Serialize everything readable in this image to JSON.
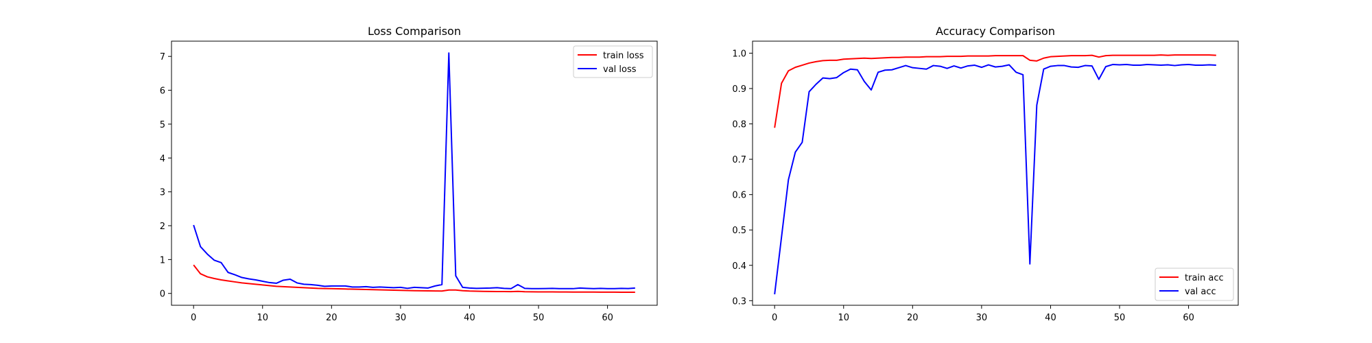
{
  "chart_data": [
    {
      "type": "line",
      "title": "Loss Comparison",
      "xlabel": "",
      "ylabel": "",
      "xlim": [
        -3.2,
        67.2
      ],
      "ylim": [
        -0.35,
        7.45
      ],
      "xticks": [
        0,
        10,
        20,
        30,
        40,
        50,
        60
      ],
      "yticks": [
        0,
        1,
        2,
        3,
        4,
        5,
        6,
        7
      ],
      "xtick_labels": [
        "0",
        "10",
        "20",
        "30",
        "40",
        "50",
        "60"
      ],
      "ytick_labels": [
        "0",
        "1",
        "2",
        "3",
        "4",
        "5",
        "6",
        "7"
      ],
      "grid": false,
      "legend_position": "top-right",
      "series": [
        {
          "name": "train loss",
          "color": "#ff0000",
          "values": [
            0.84,
            0.58,
            0.49,
            0.44,
            0.4,
            0.37,
            0.34,
            0.31,
            0.29,
            0.27,
            0.25,
            0.23,
            0.21,
            0.2,
            0.19,
            0.18,
            0.17,
            0.16,
            0.15,
            0.145,
            0.14,
            0.135,
            0.13,
            0.125,
            0.12,
            0.115,
            0.11,
            0.105,
            0.1,
            0.095,
            0.09,
            0.085,
            0.08,
            0.078,
            0.075,
            0.072,
            0.07,
            0.1,
            0.1,
            0.08,
            0.07,
            0.065,
            0.06,
            0.058,
            0.056,
            0.054,
            0.052,
            0.06,
            0.05,
            0.048,
            0.046,
            0.045,
            0.044,
            0.043,
            0.042,
            0.041,
            0.04,
            0.04,
            0.039,
            0.038,
            0.038,
            0.037,
            0.036,
            0.036,
            0.035
          ]
        },
        {
          "name": "val loss",
          "color": "#0000ff",
          "values": [
            2.02,
            1.38,
            1.16,
            0.98,
            0.91,
            0.62,
            0.55,
            0.47,
            0.43,
            0.4,
            0.36,
            0.32,
            0.3,
            0.39,
            0.42,
            0.31,
            0.27,
            0.26,
            0.24,
            0.21,
            0.22,
            0.22,
            0.22,
            0.19,
            0.19,
            0.2,
            0.18,
            0.19,
            0.18,
            0.17,
            0.18,
            0.15,
            0.18,
            0.17,
            0.16,
            0.22,
            0.26,
            7.1,
            0.52,
            0.18,
            0.16,
            0.15,
            0.155,
            0.16,
            0.17,
            0.15,
            0.14,
            0.26,
            0.15,
            0.14,
            0.14,
            0.145,
            0.15,
            0.14,
            0.14,
            0.14,
            0.16,
            0.15,
            0.14,
            0.15,
            0.14,
            0.14,
            0.15,
            0.145,
            0.16
          ]
        }
      ]
    },
    {
      "type": "line",
      "title": "Accuracy Comparison",
      "xlabel": "",
      "ylabel": "",
      "xlim": [
        -3.2,
        67.2
      ],
      "ylim": [
        0.287,
        1.034
      ],
      "xticks": [
        0,
        10,
        20,
        30,
        40,
        50,
        60
      ],
      "yticks": [
        0.3,
        0.4,
        0.5,
        0.6,
        0.7,
        0.8,
        0.9,
        1.0
      ],
      "xtick_labels": [
        "0",
        "10",
        "20",
        "30",
        "40",
        "50",
        "60"
      ],
      "ytick_labels": [
        "0.3",
        "0.4",
        "0.5",
        "0.6",
        "0.7",
        "0.8",
        "0.9",
        "1.0"
      ],
      "grid": false,
      "legend_position": "bottom-right",
      "series": [
        {
          "name": "train acc",
          "color": "#ff0000",
          "values": [
            0.789,
            0.915,
            0.95,
            0.96,
            0.966,
            0.972,
            0.976,
            0.979,
            0.98,
            0.98,
            0.983,
            0.984,
            0.985,
            0.986,
            0.985,
            0.986,
            0.987,
            0.988,
            0.988,
            0.989,
            0.989,
            0.989,
            0.99,
            0.99,
            0.99,
            0.991,
            0.991,
            0.991,
            0.992,
            0.992,
            0.992,
            0.992,
            0.993,
            0.993,
            0.993,
            0.993,
            0.993,
            0.98,
            0.978,
            0.986,
            0.99,
            0.991,
            0.992,
            0.993,
            0.993,
            0.993,
            0.994,
            0.989,
            0.993,
            0.994,
            0.994,
            0.994,
            0.994,
            0.994,
            0.994,
            0.994,
            0.995,
            0.994,
            0.995,
            0.995,
            0.995,
            0.995,
            0.995,
            0.995,
            0.994
          ]
        },
        {
          "name": "val acc",
          "color": "#0000ff",
          "values": [
            0.318,
            0.48,
            0.642,
            0.72,
            0.748,
            0.891,
            0.912,
            0.93,
            0.928,
            0.931,
            0.945,
            0.955,
            0.953,
            0.92,
            0.896,
            0.946,
            0.952,
            0.953,
            0.959,
            0.965,
            0.959,
            0.957,
            0.955,
            0.965,
            0.963,
            0.957,
            0.964,
            0.958,
            0.964,
            0.966,
            0.96,
            0.967,
            0.961,
            0.963,
            0.967,
            0.946,
            0.939,
            0.404,
            0.853,
            0.955,
            0.963,
            0.965,
            0.965,
            0.961,
            0.96,
            0.965,
            0.964,
            0.926,
            0.962,
            0.968,
            0.967,
            0.968,
            0.966,
            0.966,
            0.968,
            0.967,
            0.966,
            0.967,
            0.965,
            0.967,
            0.968,
            0.966,
            0.966,
            0.967,
            0.966
          ]
        }
      ]
    }
  ]
}
